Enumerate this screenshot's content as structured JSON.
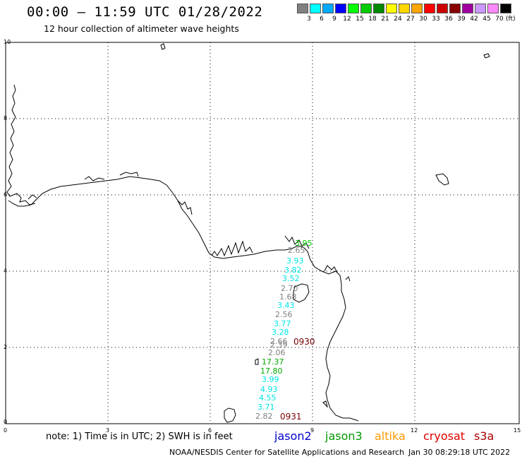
{
  "header": {
    "title": "00:00 – 11:59 UTC 01/28/2022",
    "subtitle": "12 hour collection of altimeter wave heights"
  },
  "legend": {
    "colors": [
      "#808080",
      "#00ffff",
      "#00aaff",
      "#0000ff",
      "#00ff00",
      "#00cc00",
      "#008800",
      "#ffff00",
      "#ffd700",
      "#ffa500",
      "#ff0000",
      "#cc0000",
      "#880000",
      "#a000a0",
      "#cc99ff",
      "#ff88ff",
      "#000000"
    ],
    "labels": [
      "3",
      "6",
      "9",
      "12",
      "15",
      "18",
      "21",
      "24",
      "27",
      "30",
      "33",
      "36",
      "39",
      "42",
      "45",
      "70"
    ],
    "unit": "(ft)"
  },
  "axes": {
    "x_ticks": [
      "0",
      "3",
      "6",
      "9",
      "12",
      "15"
    ],
    "y_ticks": [
      "0",
      "2",
      "4",
      "6",
      "8",
      "10"
    ]
  },
  "wave_heights": [
    {
      "text": "3.95",
      "color": "#00cc00"
    },
    {
      "text": "2.65",
      "color": "#808080"
    },
    {
      "text": "3.93",
      "color": "#00e5e5"
    },
    {
      "text": "3.82",
      "color": "#00e5e5"
    },
    {
      "text": "3.52",
      "color": "#00e5e5"
    },
    {
      "text": "2.70",
      "color": "#808080"
    },
    {
      "text": "1.68",
      "color": "#808080"
    },
    {
      "text": "3.43",
      "color": "#00e5e5"
    },
    {
      "text": "2.56",
      "color": "#808080"
    },
    {
      "text": "3.77",
      "color": "#00e5e5"
    },
    {
      "text": "3.28",
      "color": "#00e5e5"
    },
    {
      "text": "2.66",
      "color": "#808080"
    },
    {
      "text": "2.39",
      "color": "#808080"
    },
    {
      "text": "2.06",
      "color": "#808080"
    },
    {
      "text": "17.37",
      "color": "#00aa00"
    },
    {
      "text": "17.80",
      "color": "#00aa00"
    },
    {
      "text": "3.99",
      "color": "#00e5e5"
    },
    {
      "text": "4.93",
      "color": "#00e5e5"
    },
    {
      "text": "4.55",
      "color": "#00e5e5"
    },
    {
      "text": "3.71",
      "color": "#00e5e5"
    },
    {
      "text": "2.82",
      "color": "#808080"
    }
  ],
  "pass_times": [
    "0930",
    "0931"
  ],
  "footer": {
    "note": "note:  1) Time is in UTC;  2) SWH is in feet",
    "satellites": [
      {
        "name": "jason2",
        "color": "#0000cc"
      },
      {
        "name": "jason3",
        "color": "#009900"
      },
      {
        "name": "altika",
        "color": "#ff9900"
      },
      {
        "name": "cryosat",
        "color": "#dd0000"
      },
      {
        "name": "s3a",
        "color": "#aa0000"
      }
    ],
    "credit": "NOAA/NESDIS Center for Satellite Applications and Research",
    "generated": "Jan 30 08:29:18 UTC 2022"
  }
}
